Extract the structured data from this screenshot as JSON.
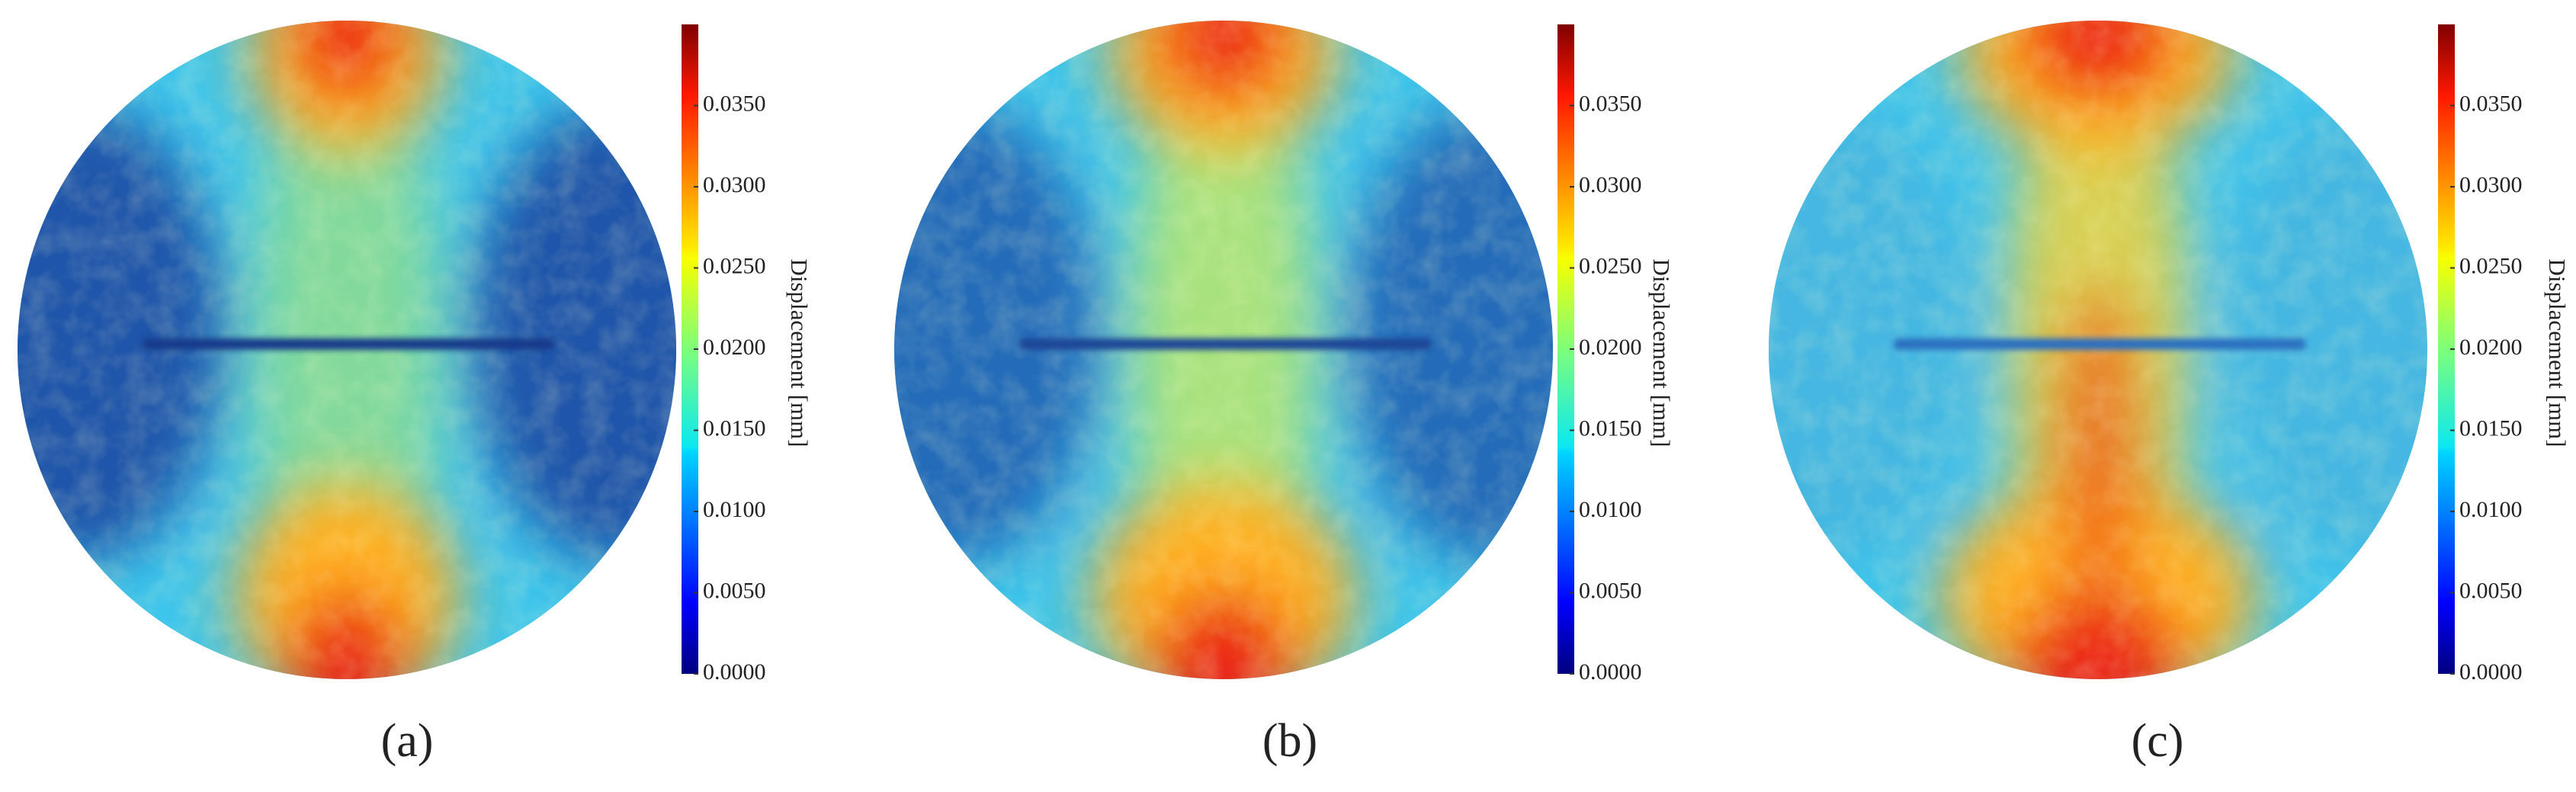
{
  "chart_data": [
    {
      "type": "heatmap",
      "caption": "(a)",
      "axis_label": "Displacement [mm]",
      "colormap": "jet",
      "ylim": [
        0,
        0.04
      ],
      "yticks": [
        {
          "value": 0,
          "label": "0.0000"
        },
        {
          "value": 0.005,
          "label": "0.0050"
        },
        {
          "value": 0.01,
          "label": "0.0100"
        },
        {
          "value": 0.015,
          "label": "0.0150"
        },
        {
          "value": 0.02,
          "label": "0.0200"
        },
        {
          "value": 0.025,
          "label": "0.0250"
        },
        {
          "value": 0.03,
          "label": "0.0300"
        },
        {
          "value": 0.035,
          "label": "0.0350"
        }
      ]
    },
    {
      "type": "heatmap",
      "caption": "(b)",
      "axis_label": "Displacement [mm]",
      "colormap": "jet",
      "ylim": [
        0,
        0.04
      ],
      "yticks": [
        {
          "value": 0,
          "label": "0.0000"
        },
        {
          "value": 0.005,
          "label": "0.0050"
        },
        {
          "value": 0.01,
          "label": "0.0100"
        },
        {
          "value": 0.015,
          "label": "0.0150"
        },
        {
          "value": 0.02,
          "label": "0.0200"
        },
        {
          "value": 0.025,
          "label": "0.0250"
        },
        {
          "value": 0.03,
          "label": "0.0300"
        },
        {
          "value": 0.035,
          "label": "0.0350"
        }
      ]
    },
    {
      "type": "heatmap",
      "caption": "(c)",
      "axis_label": "Displacement [mm]",
      "colormap": "jet",
      "ylim": [
        0,
        0.04
      ],
      "yticks": [
        {
          "value": 0,
          "label": "0.0000"
        },
        {
          "value": 0.005,
          "label": "0.0050"
        },
        {
          "value": 0.01,
          "label": "0.0100"
        },
        {
          "value": 0.015,
          "label": "0.0150"
        },
        {
          "value": 0.02,
          "label": "0.0200"
        },
        {
          "value": 0.025,
          "label": "0.0250"
        },
        {
          "value": 0.03,
          "label": "0.0300"
        },
        {
          "value": 0.035,
          "label": "0.0350"
        }
      ]
    }
  ]
}
